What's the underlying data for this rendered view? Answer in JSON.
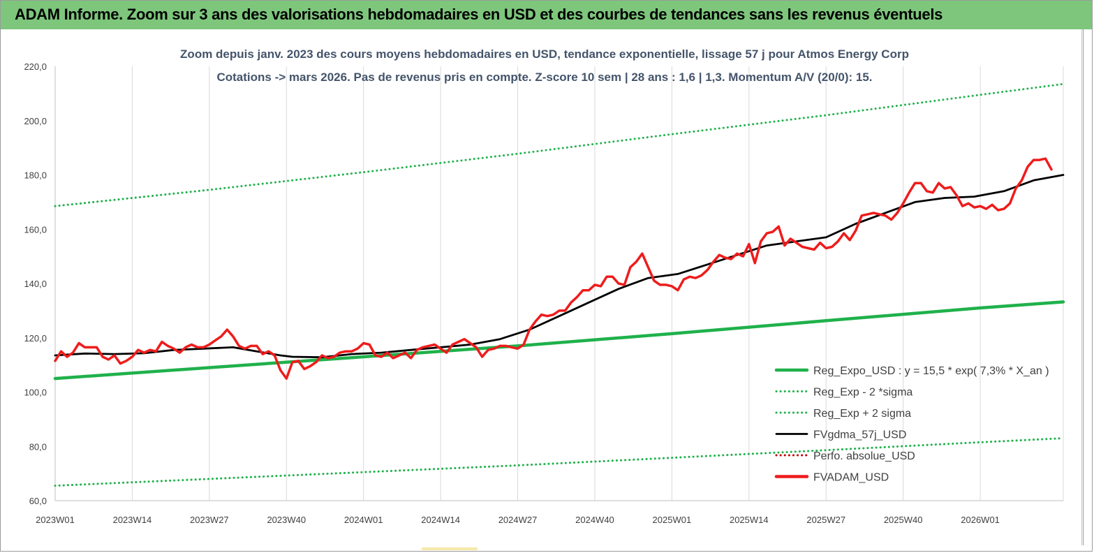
{
  "banner": {
    "title": "ADAM Informe. Zoom sur 3 ans des valorisations hebdomadaires en USD et des courbes de tendances sans les revenus éventuels"
  },
  "chart_data": {
    "type": "line",
    "title_line1": "Zoom depuis janv. 2023 des cours moyens hebdomadaires en USD, tendance exponentielle, lissage 57 j pour Atmos Energy Corp",
    "title_line2": "Cotations -> mars 2026. Pas de revenus pris en compte. Z-score 10 sem  | 28 ans : 1,6 | 1,3. Momentum A/V (20/0): 15.",
    "x_axis": {
      "tick_labels": [
        "2023W01",
        "2023W14",
        "2023W27",
        "2023W40",
        "2024W01",
        "2024W14",
        "2024W27",
        "2024W40",
        "2025W01",
        "2025W14",
        "2025W27",
        "2025W40",
        "2026W01"
      ],
      "tick_weeks": [
        0,
        13,
        26,
        39,
        52,
        65,
        78,
        91,
        104,
        117,
        130,
        143,
        156
      ],
      "last_week": 170
    },
    "y_axis": {
      "min": 60,
      "max": 220,
      "step": 20,
      "tick_labels": [
        "60,0",
        "80,0",
        "100,0",
        "120,0",
        "140,0",
        "160,0",
        "180,0",
        "200,0",
        "220,0"
      ]
    },
    "grid": "vertical",
    "legend_position": "right",
    "series": [
      {
        "name": "Reg_Expo_USD : y = 15,5 * exp( 7,3% *  X_an )",
        "color": "#1fb14b",
        "style": "thick",
        "points": [
          [
            0,
            105.0
          ],
          [
            26,
            109.0
          ],
          [
            52,
            113.0
          ],
          [
            78,
            117.0
          ],
          [
            104,
            121.5
          ],
          [
            130,
            126.3
          ],
          [
            156,
            131.0
          ],
          [
            170,
            133.2
          ]
        ]
      },
      {
        "name": "Reg_Exp - 2 *sigma",
        "color": "#1fb14b",
        "style": "dotted",
        "points": [
          [
            0,
            65.5
          ],
          [
            26,
            68.0
          ],
          [
            52,
            70.5
          ],
          [
            78,
            73.0
          ],
          [
            104,
            75.8
          ],
          [
            130,
            78.6
          ],
          [
            156,
            81.5
          ],
          [
            170,
            83.0
          ]
        ]
      },
      {
        "name": "Reg_Exp + 2 sigma",
        "color": "#1fb14b",
        "style": "dotted",
        "points": [
          [
            0,
            168.5
          ],
          [
            26,
            174.5
          ],
          [
            52,
            181.0
          ],
          [
            78,
            187.8
          ],
          [
            104,
            195.0
          ],
          [
            130,
            202.0
          ],
          [
            156,
            209.5
          ],
          [
            170,
            213.5
          ]
        ]
      },
      {
        "name": "FVgdma_57j_USD",
        "color": "#000000",
        "style": "solid",
        "points": [
          [
            0,
            113.5
          ],
          [
            5,
            114.2
          ],
          [
            10,
            114.0
          ],
          [
            15,
            114.3
          ],
          [
            20,
            115.5
          ],
          [
            25,
            116.0
          ],
          [
            30,
            116.5
          ],
          [
            34,
            115.0
          ],
          [
            38,
            113.5
          ],
          [
            40,
            113.0
          ],
          [
            45,
            112.8
          ],
          [
            50,
            114.0
          ],
          [
            55,
            114.5
          ],
          [
            60,
            115.5
          ],
          [
            65,
            116.5
          ],
          [
            70,
            117.5
          ],
          [
            75,
            119.5
          ],
          [
            80,
            123.0
          ],
          [
            85,
            128.0
          ],
          [
            90,
            133.0
          ],
          [
            95,
            138.0
          ],
          [
            100,
            142.0
          ],
          [
            105,
            143.5
          ],
          [
            110,
            147.0
          ],
          [
            115,
            150.5
          ],
          [
            120,
            154.0
          ],
          [
            125,
            155.5
          ],
          [
            130,
            157.0
          ],
          [
            135,
            162.0
          ],
          [
            140,
            166.0
          ],
          [
            145,
            170.0
          ],
          [
            150,
            171.5
          ],
          [
            155,
            172.0
          ],
          [
            160,
            174.0
          ],
          [
            165,
            178.0
          ],
          [
            170,
            180.0
          ]
        ]
      },
      {
        "name": "Perfo. absolue_USD",
        "color": "#c00000",
        "style": "dotted",
        "points": []
      },
      {
        "name": "FVADAM_USD",
        "color": "#ee1c1c",
        "style": "thick",
        "points": [
          [
            0,
            111.5
          ],
          [
            1,
            115.0
          ],
          [
            2,
            113.0
          ],
          [
            3,
            114.5
          ],
          [
            4,
            118.0
          ],
          [
            5,
            116.5
          ],
          [
            6,
            116.5
          ],
          [
            7,
            116.5
          ],
          [
            8,
            113.0
          ],
          [
            9,
            112.0
          ],
          [
            10,
            113.5
          ],
          [
            11,
            110.5
          ],
          [
            12,
            111.5
          ],
          [
            13,
            113.0
          ],
          [
            14,
            115.5
          ],
          [
            15,
            114.5
          ],
          [
            16,
            115.5
          ],
          [
            17,
            115.0
          ],
          [
            18,
            118.5
          ],
          [
            19,
            117.0
          ],
          [
            20,
            116.0
          ],
          [
            21,
            114.5
          ],
          [
            22,
            116.5
          ],
          [
            23,
            117.5
          ],
          [
            24,
            116.5
          ],
          [
            25,
            116.5
          ],
          [
            26,
            117.5
          ],
          [
            27,
            119.0
          ],
          [
            28,
            120.5
          ],
          [
            29,
            123.0
          ],
          [
            30,
            120.5
          ],
          [
            31,
            117.0
          ],
          [
            32,
            116.0
          ],
          [
            33,
            117.0
          ],
          [
            34,
            117.0
          ],
          [
            35,
            114.0
          ],
          [
            36,
            115.0
          ],
          [
            37,
            113.5
          ],
          [
            38,
            108.0
          ],
          [
            39,
            105.0
          ],
          [
            40,
            111.0
          ],
          [
            41,
            111.5
          ],
          [
            42,
            108.5
          ],
          [
            43,
            109.5
          ],
          [
            44,
            111.0
          ],
          [
            45,
            113.5
          ],
          [
            46,
            112.5
          ],
          [
            47,
            113.0
          ],
          [
            48,
            114.5
          ],
          [
            49,
            115.0
          ],
          [
            50,
            115.0
          ],
          [
            51,
            116.0
          ],
          [
            52,
            118.0
          ],
          [
            53,
            117.5
          ],
          [
            54,
            113.5
          ],
          [
            55,
            113.0
          ],
          [
            56,
            114.5
          ],
          [
            57,
            112.5
          ],
          [
            58,
            113.5
          ],
          [
            59,
            114.5
          ],
          [
            60,
            112.5
          ],
          [
            61,
            115.5
          ],
          [
            62,
            116.5
          ],
          [
            63,
            117.0
          ],
          [
            64,
            117.5
          ],
          [
            65,
            116.0
          ],
          [
            66,
            114.5
          ],
          [
            67,
            117.5
          ],
          [
            68,
            118.5
          ],
          [
            69,
            119.5
          ],
          [
            70,
            118.0
          ],
          [
            71,
            116.5
          ],
          [
            72,
            113.0
          ],
          [
            73,
            115.5
          ],
          [
            74,
            116.0
          ],
          [
            75,
            117.0
          ],
          [
            76,
            117.0
          ],
          [
            77,
            116.5
          ],
          [
            78,
            116.0
          ],
          [
            79,
            117.5
          ],
          [
            80,
            123.0
          ],
          [
            81,
            126.0
          ],
          [
            82,
            128.5
          ],
          [
            83,
            128.0
          ],
          [
            84,
            128.5
          ],
          [
            85,
            130.0
          ],
          [
            86,
            130.0
          ],
          [
            87,
            133.0
          ],
          [
            88,
            135.0
          ],
          [
            89,
            137.5
          ],
          [
            90,
            137.5
          ],
          [
            91,
            139.5
          ],
          [
            92,
            139.0
          ],
          [
            93,
            142.5
          ],
          [
            94,
            142.5
          ],
          [
            95,
            140.0
          ],
          [
            96,
            139.5
          ],
          [
            97,
            146.0
          ],
          [
            98,
            148.0
          ],
          [
            99,
            151.0
          ],
          [
            100,
            146.0
          ],
          [
            101,
            141.0
          ],
          [
            102,
            139.5
          ],
          [
            103,
            139.5
          ],
          [
            104,
            139.0
          ],
          [
            105,
            137.5
          ],
          [
            106,
            141.5
          ],
          [
            107,
            142.5
          ],
          [
            108,
            142.0
          ],
          [
            109,
            143.0
          ],
          [
            110,
            145.0
          ],
          [
            111,
            148.0
          ],
          [
            112,
            150.5
          ],
          [
            113,
            149.5
          ],
          [
            114,
            149.0
          ],
          [
            115,
            151.0
          ],
          [
            116,
            150.0
          ],
          [
            117,
            154.5
          ],
          [
            118,
            147.5
          ],
          [
            119,
            155.5
          ],
          [
            120,
            158.5
          ],
          [
            121,
            159.0
          ],
          [
            122,
            161.0
          ],
          [
            123,
            154.0
          ],
          [
            124,
            156.5
          ],
          [
            125,
            155.0
          ],
          [
            126,
            153.5
          ],
          [
            127,
            153.0
          ],
          [
            128,
            152.5
          ],
          [
            129,
            155.0
          ],
          [
            130,
            153.0
          ],
          [
            131,
            153.5
          ],
          [
            132,
            155.5
          ],
          [
            133,
            158.5
          ],
          [
            134,
            156.0
          ],
          [
            135,
            159.5
          ],
          [
            136,
            165.0
          ],
          [
            137,
            165.5
          ],
          [
            138,
            166.0
          ],
          [
            139,
            165.5
          ],
          [
            140,
            165.0
          ],
          [
            141,
            163.5
          ],
          [
            142,
            166.0
          ],
          [
            143,
            169.5
          ],
          [
            144,
            173.5
          ],
          [
            145,
            177.0
          ],
          [
            146,
            177.0
          ],
          [
            147,
            174.0
          ],
          [
            148,
            173.5
          ],
          [
            149,
            177.0
          ],
          [
            150,
            175.0
          ],
          [
            151,
            175.5
          ],
          [
            152,
            172.5
          ],
          [
            153,
            168.5
          ],
          [
            154,
            169.5
          ],
          [
            155,
            168.0
          ],
          [
            156,
            168.5
          ],
          [
            157,
            167.5
          ],
          [
            158,
            169.0
          ],
          [
            159,
            167.0
          ],
          [
            160,
            167.5
          ],
          [
            161,
            169.5
          ],
          [
            162,
            175.0
          ],
          [
            163,
            178.0
          ],
          [
            164,
            183.0
          ],
          [
            165,
            185.5
          ],
          [
            166,
            185.5
          ],
          [
            167,
            186.0
          ],
          [
            168,
            182.0
          ]
        ]
      }
    ]
  }
}
